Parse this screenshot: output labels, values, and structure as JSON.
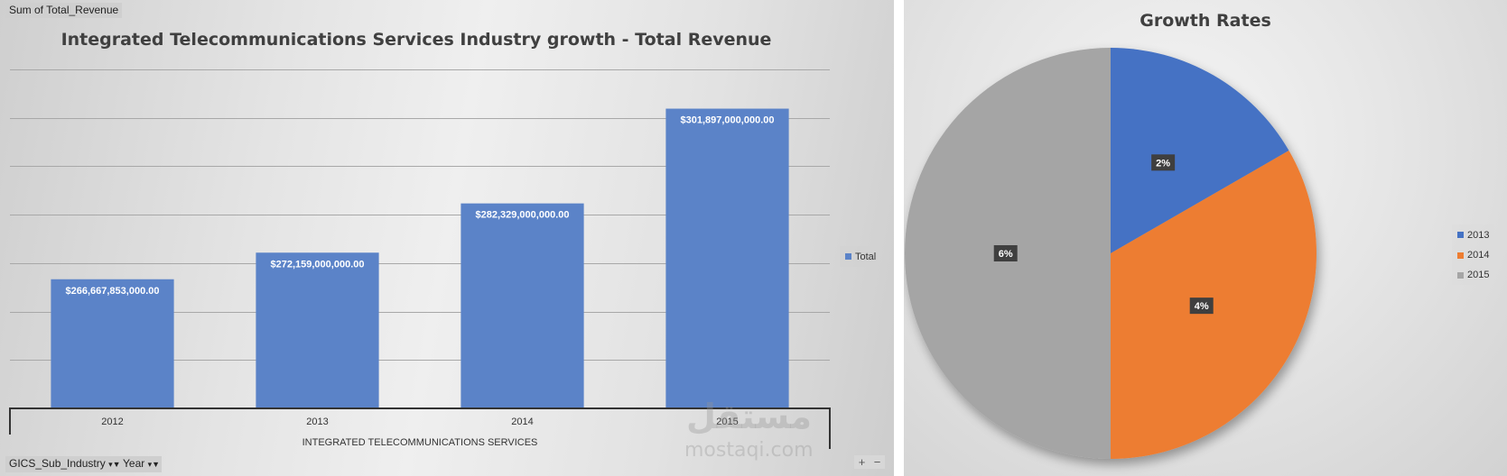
{
  "left_panel": {
    "field_button": "Sum of Total_Revenue",
    "filter_buttons": [
      {
        "label": "GICS_Sub_Industry",
        "icon": "filter-dropdown-icon"
      },
      {
        "label": "Year",
        "icon": "filter-dropdown-icon"
      }
    ],
    "zoom_controls": {
      "plus": "+",
      "minus": "−"
    },
    "watermark": {
      "arabic": "مستقل",
      "latin": "mostaqi.com"
    }
  },
  "chart_data": [
    {
      "type": "bar",
      "title": "Integrated Telecommunications Services Industry growth - Total Revenue",
      "categories": [
        "2012",
        "2013",
        "2014",
        "2015"
      ],
      "group_label": "INTEGRATED TELECOMMUNICATIONS SERVICES",
      "series": [
        {
          "name": "Total",
          "color": "#5b83c8",
          "values": [
            266667853000,
            272159000000,
            282329000000,
            301897000000
          ],
          "data_labels": [
            "$266,667,853,000.00",
            "$272,159,000,000.00",
            "$282,329,000,000.00",
            "$301,897,000,000.00"
          ]
        }
      ],
      "ylim": [
        240000000000,
        310000000000
      ],
      "ytick_step": 10000000000,
      "grid": true,
      "yaxis_labels_visible": false,
      "legend": {
        "position": "right",
        "entries": [
          "Total"
        ]
      }
    },
    {
      "type": "pie",
      "title": "Growth Rates",
      "categories": [
        "2013",
        "2014",
        "2015"
      ],
      "values": [
        2,
        4,
        6
      ],
      "data_labels": [
        "2%",
        "4%",
        "6%"
      ],
      "colors": [
        "#4472c4",
        "#ed7d31",
        "#a5a5a5"
      ],
      "start_angle_deg": 0,
      "direction": "clockwise",
      "legend": {
        "position": "right",
        "entries": [
          "2013",
          "2014",
          "2015"
        ]
      }
    }
  ]
}
